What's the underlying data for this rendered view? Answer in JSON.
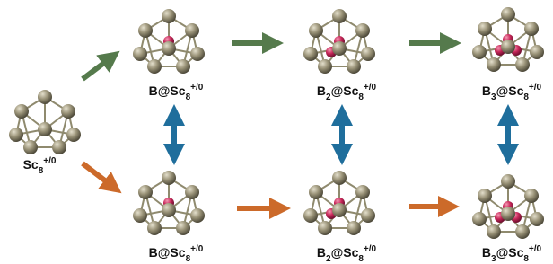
{
  "labels": [
    {
      "parts": [
        {
          "text": "Sc"
        },
        {
          "sub": "8"
        },
        {
          "sup": "+/0"
        }
      ]
    },
    {
      "parts": [
        {
          "text": "B@Sc"
        },
        {
          "sub": "8"
        },
        {
          "sup": "+/0"
        }
      ]
    },
    {
      "parts": [
        {
          "text": "B"
        },
        {
          "sub": "2"
        },
        {
          "text": "@Sc"
        },
        {
          "sub": "8"
        },
        {
          "sup": "+/0"
        }
      ]
    },
    {
      "parts": [
        {
          "text": "B"
        },
        {
          "sub": "3"
        },
        {
          "text": "@Sc"
        },
        {
          "sub": "8"
        },
        {
          "sup": "+/0"
        }
      ]
    },
    {
      "parts": [
        {
          "text": "B@Sc"
        },
        {
          "sub": "8"
        },
        {
          "sup": "+/0"
        }
      ]
    },
    {
      "parts": [
        {
          "text": "B"
        },
        {
          "sub": "2"
        },
        {
          "text": "@Sc"
        },
        {
          "sub": "8"
        },
        {
          "sup": "+/0"
        }
      ]
    },
    {
      "parts": [
        {
          "text": "B"
        },
        {
          "sub": "3"
        },
        {
          "text": "@Sc"
        },
        {
          "sub": "8"
        },
        {
          "sup": "+/0"
        }
      ]
    }
  ]
}
